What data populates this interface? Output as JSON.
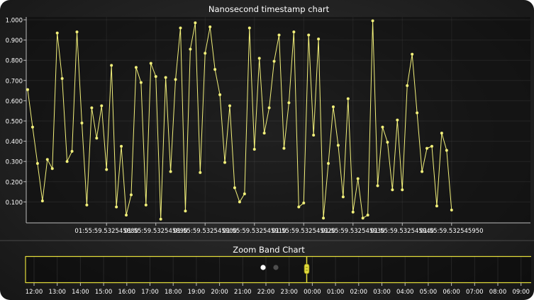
{
  "chart_data": [
    {
      "type": "line",
      "title": "Nanosecond timestamp chart",
      "xlabel": "",
      "ylabel": "",
      "ylim": [
        0,
        1.0
      ],
      "xlim": [
        0,
        102
      ],
      "grid": true,
      "x_ticks": [
        {
          "index": 16,
          "label": "01:55:59.532545880"
        },
        {
          "index": 26,
          "label": "01:55:59.532545890"
        },
        {
          "index": 36,
          "label": "01:55:59.532545900"
        },
        {
          "index": 46,
          "label": "01:55:59.532545910"
        },
        {
          "index": 56,
          "label": "01:55:59.532545920"
        },
        {
          "index": 66,
          "label": "01:55:59.532545930"
        },
        {
          "index": 76,
          "label": "01:55:59.532545940"
        },
        {
          "index": 86,
          "label": "01:55:59.532545950"
        }
      ],
      "y_ticks": [
        "0.100",
        "0.200",
        "0.300",
        "0.400",
        "0.500",
        "0.600",
        "0.700",
        "0.800",
        "0.900",
        "1.000"
      ],
      "series": [
        {
          "color": "#f2f07a",
          "values": [
            0.655,
            0.47,
            0.29,
            0.105,
            0.31,
            0.265,
            0.935,
            0.71,
            0.3,
            0.35,
            0.94,
            0.49,
            0.085,
            0.565,
            0.415,
            0.575,
            0.26,
            0.775,
            0.075,
            0.375,
            0.035,
            0.135,
            0.765,
            0.69,
            0.085,
            0.785,
            0.72,
            0.015,
            0.715,
            0.25,
            0.705,
            0.96,
            0.055,
            0.855,
            0.985,
            0.245,
            0.835,
            0.965,
            0.755,
            0.63,
            0.295,
            0.575,
            0.17,
            0.1,
            0.14,
            0.96,
            0.36,
            0.81,
            0.44,
            0.565,
            0.795,
            0.925,
            0.365,
            0.59,
            0.94,
            0.075,
            0.095,
            0.925,
            0.43,
            0.905,
            0.02,
            0.29,
            0.57,
            0.38,
            0.125,
            0.61,
            0.05,
            0.215,
            0.02,
            0.035,
            0.995,
            0.18,
            0.47,
            0.395,
            0.16,
            0.505,
            0.16,
            0.675,
            0.83,
            0.54,
            0.25,
            0.365,
            0.375,
            0.08,
            0.44,
            0.355,
            0.06
          ]
        }
      ]
    },
    {
      "type": "line",
      "title": "Zoom Band Chart",
      "x_ticks": [
        "12:00",
        "13:00",
        "14:00",
        "15:00",
        "16:00",
        "17:00",
        "18:00",
        "19:00",
        "20:00",
        "21:00",
        "22:00",
        "23:00",
        "00:00",
        "01:00",
        "02:00",
        "03:00",
        "04:00",
        "05:00",
        "06:00",
        "07:00",
        "08:00",
        "09:00"
      ],
      "band_position_label": "00:00"
    }
  ],
  "colors": {
    "series": "#f2f07a",
    "band": "#e2dc3a",
    "text": "#ffffff"
  }
}
